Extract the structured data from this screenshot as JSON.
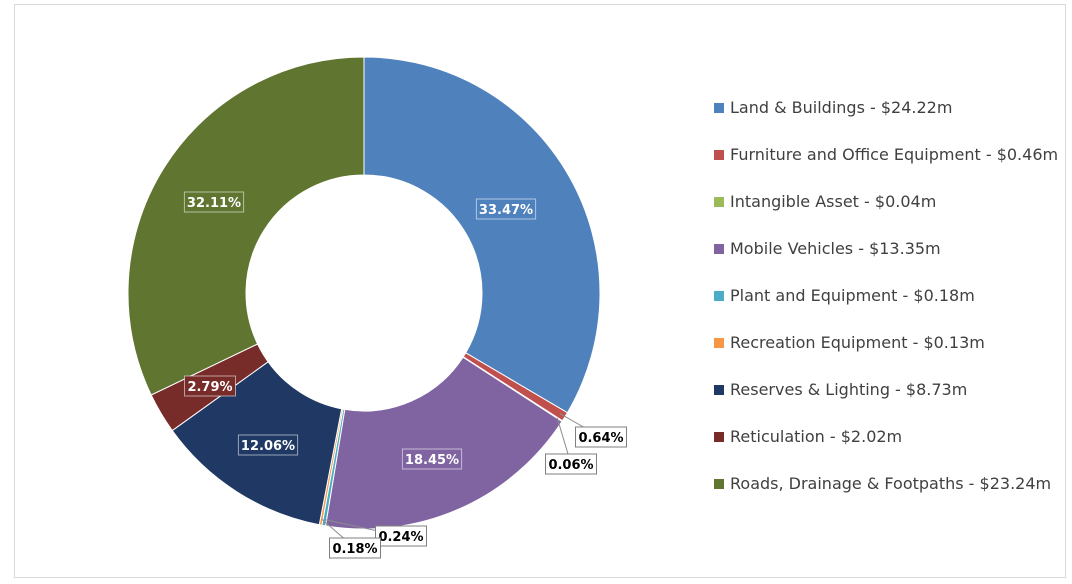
{
  "chart_data": {
    "type": "donut",
    "series": [
      {
        "name": "Land & Buildings - $24.22m",
        "value": 24.22,
        "percent_label": "33.47%",
        "color": "#4f81bd"
      },
      {
        "name": "Furniture and Office Equipment - $0.46m",
        "value": 0.46,
        "percent_label": "0.64%",
        "color": "#c0504d"
      },
      {
        "name": "Intangible Asset - $0.04m",
        "value": 0.04,
        "percent_label": "0.06%",
        "color": "#9bbb59"
      },
      {
        "name": "Mobile Vehicles - $13.35m",
        "value": 13.35,
        "percent_label": "18.45%",
        "color": "#8064a2"
      },
      {
        "name": "Plant and Equipment - $0.18m",
        "value": 0.18,
        "percent_label": "0.24%",
        "color": "#4bacc6"
      },
      {
        "name": "Recreation Equipment - $0.13m",
        "value": 0.13,
        "percent_label": "0.18%",
        "color": "#f79646"
      },
      {
        "name": "Reserves & Lighting - $8.73m",
        "value": 8.73,
        "percent_label": "12.06%",
        "color": "#1f3864"
      },
      {
        "name": "Reticulation - $2.02m",
        "value": 2.02,
        "percent_label": "2.79%",
        "color": "#772c2a"
      },
      {
        "name": "Roads, Drainage & Footpaths - $23.24m",
        "value": 23.24,
        "percent_label": "32.11%",
        "color": "#5f7530"
      }
    ],
    "legend_position": "right"
  }
}
